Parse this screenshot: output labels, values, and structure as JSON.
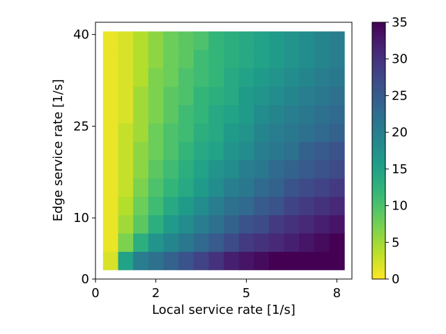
{
  "chart_data": {
    "type": "heatmap",
    "xlabel": "Local service rate [1/s]",
    "ylabel": "Edge service rate [1/s]",
    "xlim": [
      0,
      8.5
    ],
    "ylim": [
      0,
      42
    ],
    "x_ticks": [
      0,
      2,
      5,
      8
    ],
    "x_tick_labels": [
      "0",
      "2",
      "5",
      "8"
    ],
    "y_ticks": [
      0,
      10,
      25,
      40
    ],
    "y_tick_labels": [
      "0",
      "10",
      "25",
      "40"
    ],
    "x_centers": [
      0.5,
      1.0,
      1.5,
      2.0,
      2.5,
      3.0,
      3.5,
      4.0,
      4.5,
      5.0,
      5.5,
      6.0,
      6.5,
      7.0,
      7.5,
      8.0
    ],
    "y_centers": [
      3,
      6,
      9,
      12,
      15,
      18,
      21,
      24,
      27,
      30,
      33,
      36,
      39
    ],
    "values": [
      [
        2,
        15,
        20,
        22,
        24,
        26,
        28,
        30,
        32,
        33,
        34,
        35,
        35,
        35,
        35,
        35
      ],
      [
        1,
        7,
        13,
        17,
        19,
        21,
        23,
        25,
        27,
        29,
        30,
        31,
        32,
        33,
        34,
        35
      ],
      [
        1,
        5,
        9,
        13,
        16,
        18,
        20,
        22,
        24,
        26,
        27,
        29,
        30,
        31,
        32,
        33
      ],
      [
        1,
        4,
        8,
        11,
        14,
        16,
        18,
        20,
        22,
        23,
        25,
        26,
        28,
        29,
        30,
        31
      ],
      [
        1,
        3,
        7,
        10,
        12,
        14,
        16,
        18,
        20,
        21,
        23,
        24,
        26,
        27,
        28,
        29
      ],
      [
        1,
        3,
        6,
        9,
        11,
        13,
        15,
        17,
        18,
        20,
        21,
        23,
        24,
        25,
        26,
        27
      ],
      [
        1,
        3,
        6,
        8,
        10,
        12,
        14,
        15,
        17,
        18,
        20,
        21,
        22,
        24,
        25,
        26
      ],
      [
        1,
        3,
        5,
        8,
        10,
        11,
        13,
        14,
        16,
        17,
        19,
        20,
        21,
        22,
        23,
        24
      ],
      [
        1,
        2,
        5,
        7,
        9,
        11,
        12,
        14,
        15,
        16,
        18,
        19,
        20,
        21,
        22,
        23
      ],
      [
        1,
        2,
        5,
        7,
        9,
        10,
        12,
        13,
        14,
        16,
        17,
        18,
        19,
        20,
        21,
        22
      ],
      [
        1,
        2,
        4,
        7,
        8,
        10,
        11,
        12,
        14,
        15,
        16,
        17,
        18,
        19,
        20,
        21
      ],
      [
        1,
        2,
        4,
        6,
        8,
        9,
        11,
        12,
        13,
        14,
        15,
        16,
        17,
        18,
        19,
        20
      ],
      [
        1,
        2,
        4,
        6,
        8,
        9,
        10,
        12,
        13,
        14,
        15,
        16,
        17,
        18,
        19,
        20
      ]
    ],
    "colorbar": {
      "range": [
        0,
        35
      ],
      "ticks": [
        0,
        5,
        10,
        15,
        20,
        25,
        30,
        35
      ],
      "tick_labels": [
        "0",
        "5",
        "10",
        "15",
        "20",
        "25",
        "30",
        "35"
      ],
      "colormap": "viridis_r"
    },
    "grid": false
  }
}
